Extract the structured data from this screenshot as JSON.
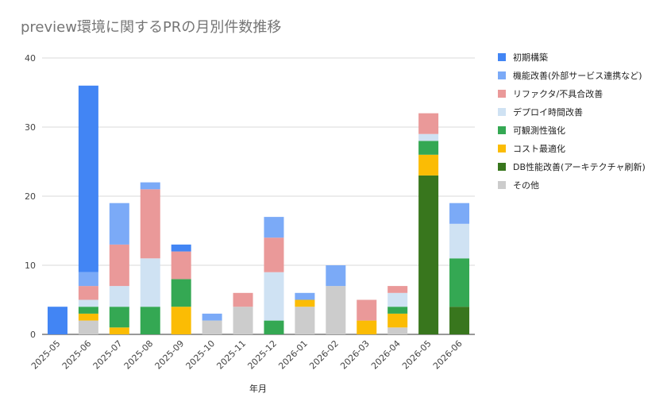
{
  "chart_data": {
    "type": "bar",
    "stacked": true,
    "title": "preview環境に関するPRの月別件数推移",
    "xlabel": "年月",
    "ylabel": "",
    "ylim": [
      0,
      40
    ],
    "yticks": [
      0,
      10,
      20,
      30,
      40
    ],
    "grid": true,
    "legend_position": "right",
    "categories": [
      "2025-05",
      "2025-06",
      "2025-07",
      "2025-08",
      "2025-09",
      "2025-10",
      "2025-11",
      "2025-12",
      "2026-01",
      "2026-02",
      "2026-03",
      "2026-04",
      "2026-05",
      "2026-06"
    ],
    "series": [
      {
        "name": "その他",
        "color": "#cccccc",
        "values": [
          0,
          2,
          0,
          0,
          0,
          2,
          4,
          0,
          4,
          7,
          0,
          1,
          0,
          0
        ]
      },
      {
        "name": "DB性能改善(アーキテクチャ刷新)",
        "color": "#38761d",
        "values": [
          0,
          0,
          0,
          0,
          0,
          0,
          0,
          0,
          0,
          0,
          0,
          0,
          23,
          4
        ]
      },
      {
        "name": "コスト最適化",
        "color": "#fbbc04",
        "values": [
          0,
          1,
          1,
          0,
          4,
          0,
          0,
          0,
          1,
          0,
          2,
          2,
          3,
          0
        ]
      },
      {
        "name": "可観測性強化",
        "color": "#34a853",
        "values": [
          0,
          1,
          3,
          4,
          4,
          0,
          0,
          2,
          0,
          0,
          0,
          1,
          2,
          7
        ]
      },
      {
        "name": "デプロイ時間改善",
        "color": "#cfe2f3",
        "values": [
          0,
          1,
          3,
          7,
          0,
          0,
          0,
          7,
          0,
          0,
          0,
          2,
          1,
          5
        ]
      },
      {
        "name": "リファクタ/不具合改善",
        "color": "#ea9999",
        "values": [
          0,
          2,
          6,
          10,
          4,
          0,
          2,
          5,
          0,
          0,
          3,
          1,
          3,
          0
        ]
      },
      {
        "name": "機能改善(外部サービス連携など)",
        "color": "#7baaf7",
        "values": [
          0,
          2,
          6,
          1,
          0,
          1,
          0,
          3,
          1,
          3,
          0,
          0,
          0,
          3
        ]
      },
      {
        "name": "初期構築",
        "color": "#4285f4",
        "values": [
          4,
          27,
          0,
          0,
          1,
          0,
          0,
          0,
          0,
          0,
          0,
          0,
          0,
          0
        ]
      }
    ],
    "legend_order": [
      "初期構築",
      "機能改善(外部サービス連携など)",
      "リファクタ/不具合改善",
      "デプロイ時間改善",
      "可観測性強化",
      "コスト最適化",
      "DB性能改善(アーキテクチャ刷新)",
      "その他"
    ]
  }
}
